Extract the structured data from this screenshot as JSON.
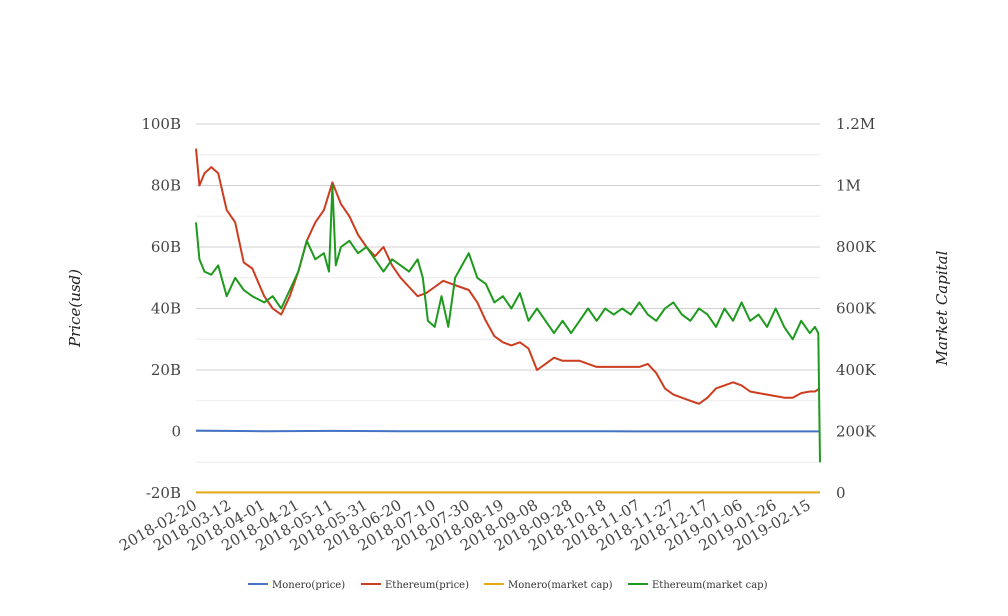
{
  "chart_data": {
    "type": "line",
    "title": "",
    "x": [
      "2018-02-20",
      "2018-03-12",
      "2018-04-01",
      "2018-04-21",
      "2018-05-11",
      "2018-05-31",
      "2018-06-20",
      "2018-07-10",
      "2018-07-30",
      "2018-08-19",
      "2018-09-08",
      "2018-09-28",
      "2018-10-18",
      "2018-11-07",
      "2018-11-27",
      "2018-12-17",
      "2019-01-06",
      "2019-01-26",
      "2019-02-15"
    ],
    "x_tick_labels": [
      "2018-02-20",
      "2018-03-12",
      "2018-04-01",
      "2018-04-21",
      "2018-05-11",
      "2018-05-31",
      "2018-06-20",
      "2018-07-10",
      "2018-07-30",
      "2018-08-19",
      "2018-09-08",
      "2018-09-28",
      "2018-10-18",
      "2018-11-07",
      "2018-11-27",
      "2018-12-17",
      "2019-01-06",
      "2019-01-26",
      "2019-02-15"
    ],
    "xlim": [
      "2018-02-20",
      "2019-02-21"
    ],
    "y_left": {
      "label": "Price(usd)",
      "range": [
        -20000000000,
        100000000000
      ],
      "ticks": [
        "-20B",
        "0",
        "20B",
        "40B",
        "60B",
        "80B",
        "100B"
      ],
      "tick_values": [
        -20000000000,
        0,
        20000000000,
        40000000000,
        60000000000,
        80000000000,
        100000000000
      ]
    },
    "y_right": {
      "label": "Market Capital",
      "range": [
        0,
        1200000
      ],
      "ticks": [
        "0",
        "200K",
        "400K",
        "600K",
        "800K",
        "1M",
        "1.2M"
      ],
      "tick_values": [
        0,
        200000,
        400000,
        600000,
        800000,
        1000000,
        1200000
      ]
    },
    "grid": true,
    "legend_position": "bottom",
    "series": [
      {
        "name": "Monero(price)",
        "axis": "left",
        "color": "#4472c4",
        "x": [
          "2018-02-20",
          "2018-04-01",
          "2018-05-11",
          "2018-06-20",
          "2018-07-30",
          "2018-09-08",
          "2018-10-18",
          "2018-11-27",
          "2019-01-06",
          "2019-02-21"
        ],
        "values": [
          300000000,
          100000000,
          200000000,
          100000000,
          80000000,
          60000000,
          50000000,
          40000000,
          30000000,
          30000000
        ]
      },
      {
        "name": "Ethereum(price)",
        "axis": "left",
        "color": "#cc3d1f",
        "x": [
          "2018-02-20",
          "2018-02-22",
          "2018-02-25",
          "2018-03-01",
          "2018-03-05",
          "2018-03-10",
          "2018-03-15",
          "2018-03-20",
          "2018-03-25",
          "2018-04-01",
          "2018-04-06",
          "2018-04-11",
          "2018-04-16",
          "2018-04-21",
          "2018-04-26",
          "2018-05-01",
          "2018-05-06",
          "2018-05-11",
          "2018-05-16",
          "2018-05-21",
          "2018-05-26",
          "2018-05-31",
          "2018-06-05",
          "2018-06-10",
          "2018-06-15",
          "2018-06-20",
          "2018-06-25",
          "2018-06-30",
          "2018-07-05",
          "2018-07-10",
          "2018-07-15",
          "2018-07-20",
          "2018-07-25",
          "2018-07-30",
          "2018-08-04",
          "2018-08-09",
          "2018-08-14",
          "2018-08-19",
          "2018-08-24",
          "2018-08-29",
          "2018-09-03",
          "2018-09-08",
          "2018-09-13",
          "2018-09-18",
          "2018-09-23",
          "2018-09-28",
          "2018-10-03",
          "2018-10-08",
          "2018-10-13",
          "2018-10-18",
          "2018-10-23",
          "2018-10-28",
          "2018-11-02",
          "2018-11-07",
          "2018-11-12",
          "2018-11-17",
          "2018-11-22",
          "2018-11-27",
          "2018-12-02",
          "2018-12-07",
          "2018-12-12",
          "2018-12-17",
          "2018-12-22",
          "2018-12-27",
          "2019-01-01",
          "2019-01-06",
          "2019-01-11",
          "2019-01-16",
          "2019-01-21",
          "2019-01-26",
          "2019-01-31",
          "2019-02-05",
          "2019-02-10",
          "2019-02-15",
          "2019-02-18",
          "2019-02-21"
        ],
        "values": [
          92000000000,
          80000000000,
          84000000000,
          86000000000,
          84000000000,
          72000000000,
          68000000000,
          55000000000,
          53000000000,
          44000000000,
          40000000000,
          38000000000,
          44000000000,
          52000000000,
          62000000000,
          68000000000,
          72000000000,
          81000000000,
          74000000000,
          70000000000,
          64000000000,
          60000000000,
          57000000000,
          60000000000,
          54000000000,
          50000000000,
          47000000000,
          44000000000,
          45000000000,
          47000000000,
          49000000000,
          48000000000,
          47000000000,
          46000000000,
          42000000000,
          36000000000,
          31000000000,
          29000000000,
          28000000000,
          29000000000,
          27000000000,
          20000000000,
          22000000000,
          24000000000,
          23000000000,
          23000000000,
          23000000000,
          22000000000,
          21000000000,
          21000000000,
          21000000000,
          21000000000,
          21000000000,
          21000000000,
          22000000000,
          19000000000,
          14000000000,
          12000000000,
          11000000000,
          10000000000,
          9000000000,
          11000000000,
          14000000000,
          15000000000,
          16000000000,
          15000000000,
          13000000000,
          12500000000,
          12000000000,
          11500000000,
          11000000000,
          11000000000,
          12500000000,
          13000000000,
          13000000000,
          14000000000
        ]
      },
      {
        "name": "Monero(market cap)",
        "axis": "right",
        "color": "#e6a817",
        "x": [
          "2018-02-20",
          "2019-02-21"
        ],
        "values": [
          2000,
          2000
        ]
      },
      {
        "name": "Ethereum(market cap)",
        "axis": "right",
        "color": "#1e9a1e",
        "x": [
          "2018-02-20",
          "2018-02-22",
          "2018-02-25",
          "2018-03-01",
          "2018-03-05",
          "2018-03-10",
          "2018-03-15",
          "2018-03-20",
          "2018-03-25",
          "2018-04-01",
          "2018-04-06",
          "2018-04-11",
          "2018-04-16",
          "2018-04-21",
          "2018-04-26",
          "2018-05-01",
          "2018-05-06",
          "2018-05-09",
          "2018-05-11",
          "2018-05-13",
          "2018-05-16",
          "2018-05-21",
          "2018-05-26",
          "2018-05-31",
          "2018-06-05",
          "2018-06-10",
          "2018-06-15",
          "2018-06-20",
          "2018-06-25",
          "2018-06-30",
          "2018-07-03",
          "2018-07-06",
          "2018-07-10",
          "2018-07-14",
          "2018-07-18",
          "2018-07-22",
          "2018-07-26",
          "2018-07-30",
          "2018-08-04",
          "2018-08-09",
          "2018-08-14",
          "2018-08-19",
          "2018-08-24",
          "2018-08-29",
          "2018-09-03",
          "2018-09-08",
          "2018-09-13",
          "2018-09-18",
          "2018-09-23",
          "2018-09-28",
          "2018-10-03",
          "2018-10-08",
          "2018-10-13",
          "2018-10-18",
          "2018-10-23",
          "2018-10-28",
          "2018-11-02",
          "2018-11-07",
          "2018-11-12",
          "2018-11-17",
          "2018-11-22",
          "2018-11-27",
          "2018-12-02",
          "2018-12-07",
          "2018-12-12",
          "2018-12-17",
          "2018-12-22",
          "2018-12-27",
          "2019-01-01",
          "2019-01-06",
          "2019-01-11",
          "2019-01-16",
          "2019-01-21",
          "2019-01-26",
          "2019-01-31",
          "2019-02-05",
          "2019-02-10",
          "2019-02-15",
          "2019-02-18",
          "2019-02-20",
          "2019-02-21"
        ],
        "values": [
          880000,
          760000,
          720000,
          710000,
          740000,
          640000,
          700000,
          660000,
          640000,
          620000,
          640000,
          600000,
          660000,
          720000,
          820000,
          760000,
          780000,
          720000,
          1000000,
          740000,
          800000,
          820000,
          780000,
          800000,
          760000,
          720000,
          760000,
          740000,
          720000,
          760000,
          700000,
          560000,
          540000,
          640000,
          540000,
          700000,
          740000,
          780000,
          700000,
          680000,
          620000,
          640000,
          600000,
          650000,
          560000,
          600000,
          560000,
          520000,
          560000,
          520000,
          560000,
          600000,
          560000,
          600000,
          580000,
          600000,
          580000,
          620000,
          580000,
          560000,
          600000,
          620000,
          580000,
          560000,
          600000,
          580000,
          540000,
          600000,
          560000,
          620000,
          560000,
          580000,
          540000,
          600000,
          540000,
          500000,
          560000,
          520000,
          540000,
          520000,
          100000
        ]
      }
    ]
  },
  "legend": {
    "items": [
      {
        "label": "Monero(price)",
        "color": "#4472c4"
      },
      {
        "label": "Ethereum(price)",
        "color": "#cc3d1f"
      },
      {
        "label": "Monero(market cap)",
        "color": "#e6a817"
      },
      {
        "label": "Ethereum(market cap)",
        "color": "#1e9a1e"
      }
    ]
  }
}
